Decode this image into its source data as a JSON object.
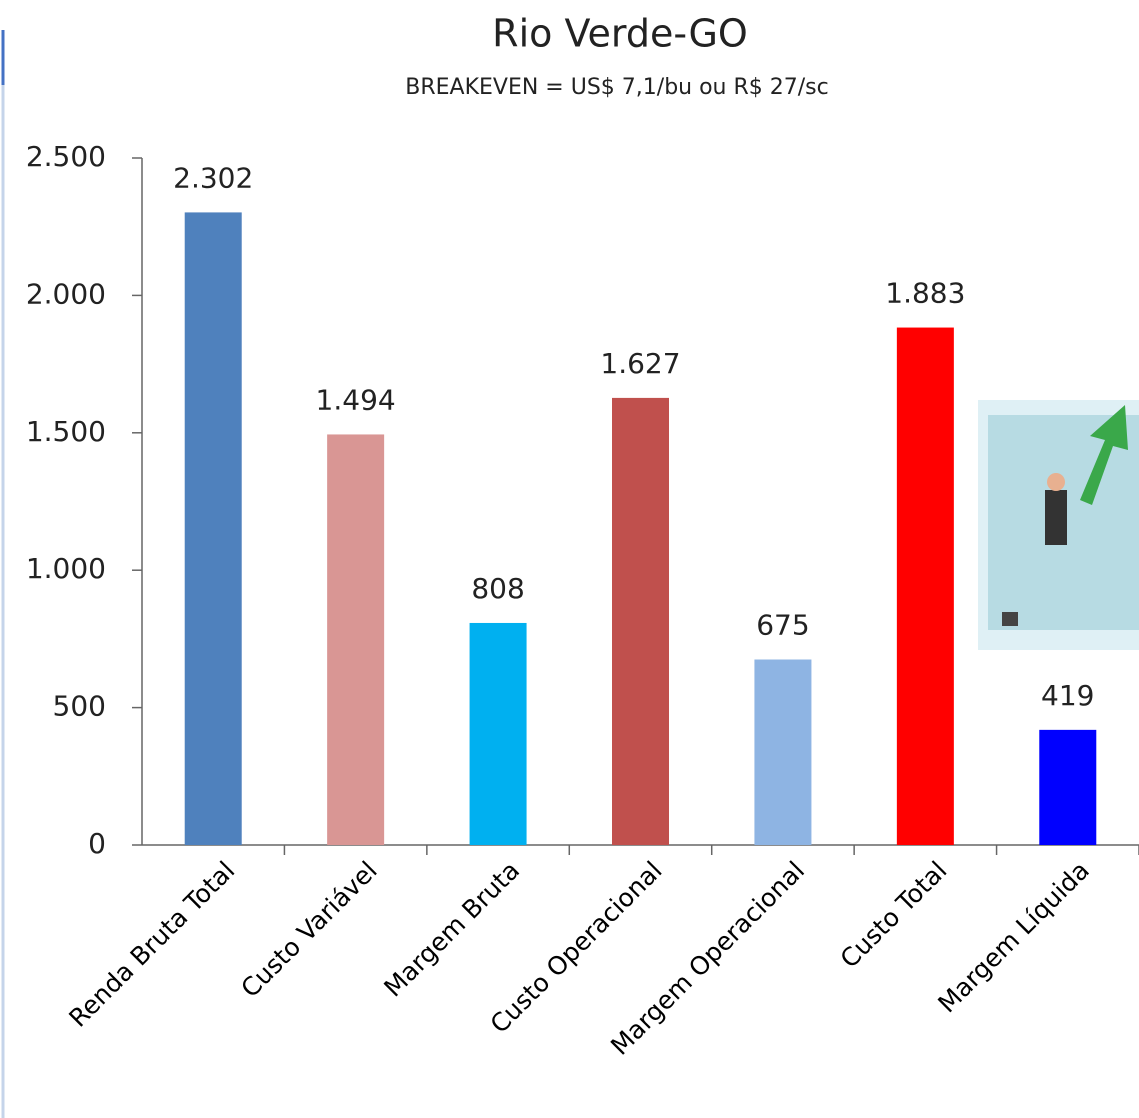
{
  "chart_data": {
    "type": "bar",
    "title": "Rio Verde-GO",
    "subtitle": "BREAKEVEN = US$ 7,1/bu ou R$ 27/sc",
    "categories": [
      "Renda Bruta Total",
      "Custo Variável",
      "Margem Bruta",
      "Custo Operacional",
      "Margem Operacional",
      "Custo Total",
      "Margem Líquida"
    ],
    "values": [
      2302,
      1494,
      808,
      1627,
      675,
      1883,
      419
    ],
    "value_labels": [
      "2.302",
      "1.494",
      "808",
      "1.627",
      "675",
      "1.883",
      "419"
    ],
    "colors": [
      "#4f81bd",
      "#d99694",
      "#00b0f0",
      "#c0504d",
      "#8eb4e3",
      "#ff0000",
      "#0000ff"
    ],
    "ylim": [
      0,
      2500
    ],
    "yticks": [
      0,
      500,
      {
        "value": 1000,
        "label": "1.000"
      },
      {
        "value": 1500,
        "label": "1.500"
      },
      {
        "value": 2000,
        "label": "2.000"
      },
      {
        "value": 2500,
        "label": "2.500"
      }
    ],
    "grid": false
  }
}
